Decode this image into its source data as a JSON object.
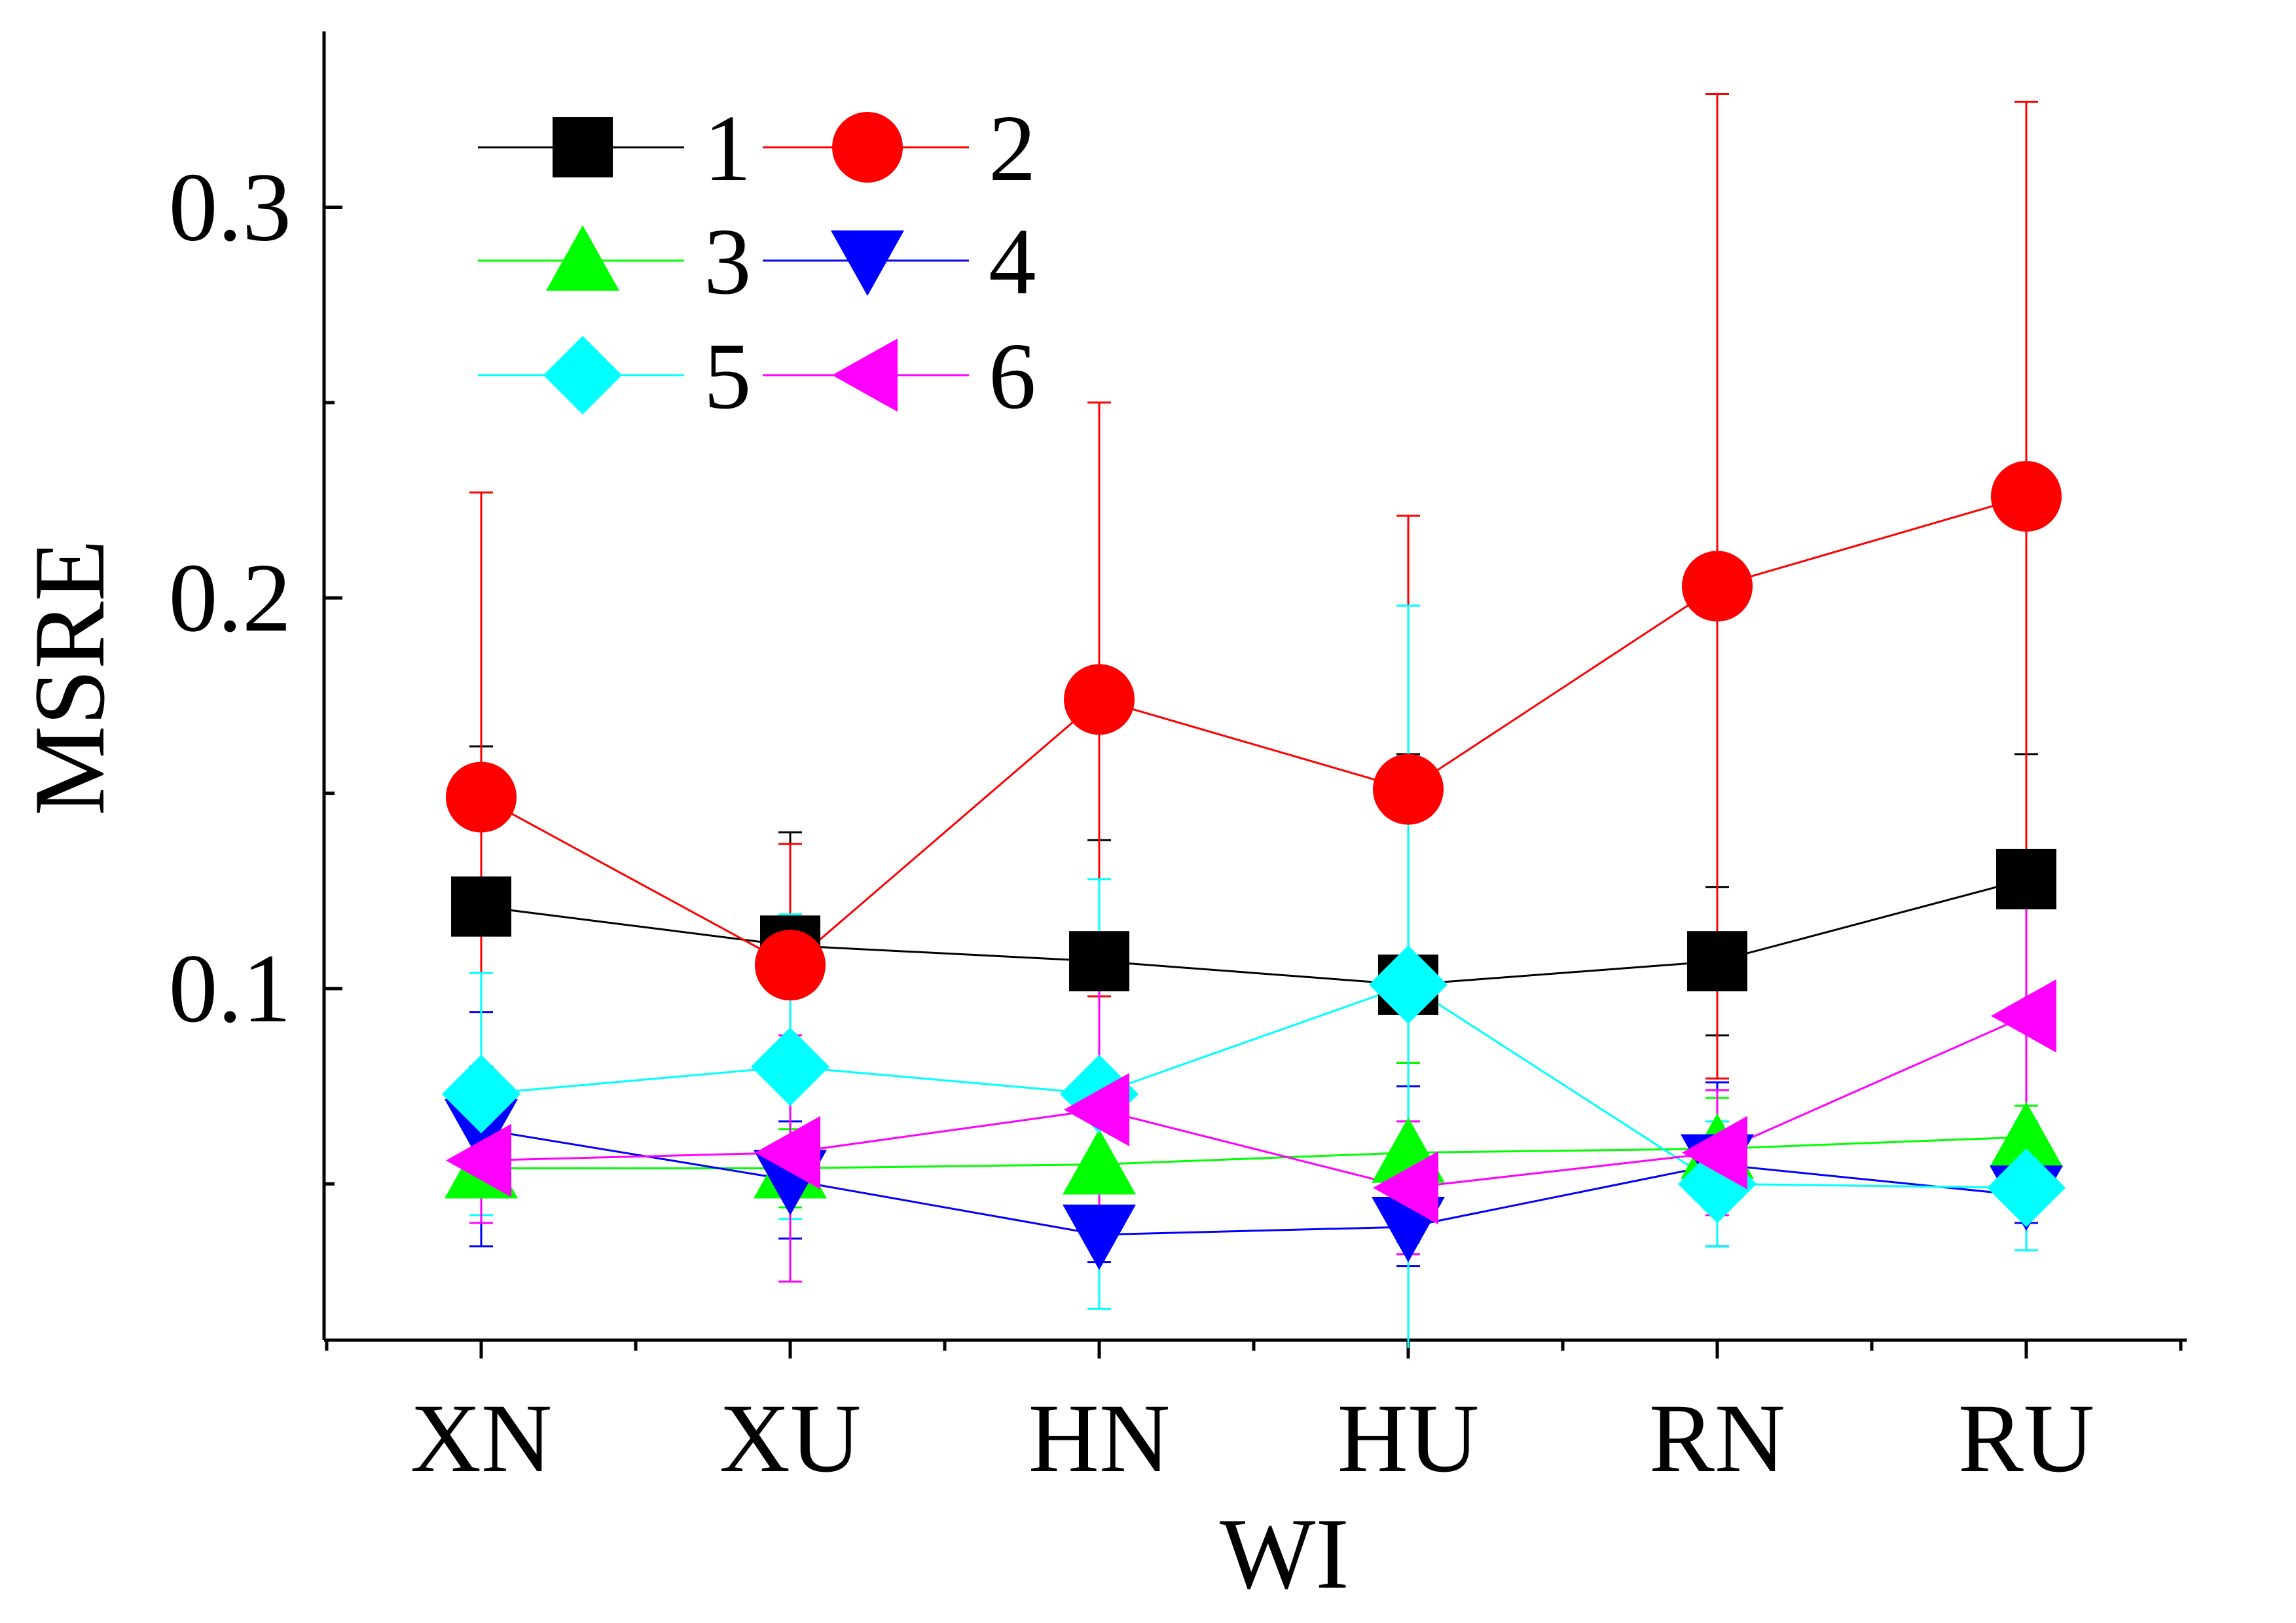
{
  "chart_data": {
    "type": "line",
    "xlabel": "WI",
    "ylabel": "MSRE",
    "categories": [
      "XN",
      "XU",
      "HN",
      "HU",
      "RN",
      "RU"
    ],
    "ylim": [
      0.01,
      0.345
    ],
    "yticks": [
      0.1,
      0.2,
      0.3
    ],
    "ytick_labels": [
      "0.1",
      "0.2",
      "0.3"
    ],
    "grid": false,
    "legend_position": "top-left",
    "series": [
      {
        "name": "1",
        "color": "#000000",
        "marker": "square",
        "values": [
          0.121,
          0.111,
          0.107,
          0.101,
          0.107,
          0.128
        ],
        "err_high": [
          0.162,
          0.14,
          0.138,
          0.16,
          0.126,
          0.16
        ],
        "err_low": [
          0.08,
          0.082,
          0.076,
          0.042,
          0.088,
          0.096
        ]
      },
      {
        "name": "2",
        "color": "#ff0000",
        "marker": "circle",
        "values": [
          0.149,
          0.106,
          0.174,
          0.151,
          0.203,
          0.226
        ],
        "err_high": [
          0.227,
          0.137,
          0.25,
          0.221,
          0.329,
          0.327
        ],
        "err_low": [
          0.071,
          0.075,
          0.098,
          0.081,
          0.077,
          0.125
        ]
      },
      {
        "name": "3",
        "color": "#00ff00",
        "marker": "triangle-up",
        "values": [
          0.054,
          0.054,
          0.055,
          0.058,
          0.059,
          0.062
        ],
        "err_high": [
          0.066,
          0.064,
          0.068,
          0.081,
          0.072,
          0.07
        ],
        "err_low": [
          0.042,
          0.044,
          0.042,
          0.035,
          0.046,
          0.054
        ]
      },
      {
        "name": "4",
        "color": "#0000ff",
        "marker": "triangle-down",
        "values": [
          0.064,
          0.051,
          0.037,
          0.039,
          0.055,
          0.047
        ],
        "err_high": [
          0.094,
          0.066,
          0.044,
          0.075,
          0.076,
          0.054
        ],
        "err_low": [
          0.034,
          0.036,
          0.03,
          0.029,
          0.034,
          0.04
        ]
      },
      {
        "name": "5",
        "color": "#00ffff",
        "marker": "diamond",
        "values": [
          0.073,
          0.08,
          0.073,
          0.101,
          0.05,
          0.049
        ],
        "err_high": [
          0.104,
          0.119,
          0.128,
          0.198,
          0.066,
          0.066
        ],
        "err_low": [
          0.042,
          0.041,
          0.018,
          0.004,
          0.034,
          0.033
        ]
      },
      {
        "name": "6",
        "color": "#ff00ff",
        "marker": "triangle-left",
        "values": [
          0.056,
          0.058,
          0.069,
          0.049,
          0.058,
          0.093
        ],
        "err_high": [
          0.072,
          0.088,
          0.1,
          0.066,
          0.074,
          0.135
        ],
        "err_low": [
          0.04,
          0.025,
          0.038,
          0.032,
          0.042,
          0.051
        ]
      }
    ]
  }
}
